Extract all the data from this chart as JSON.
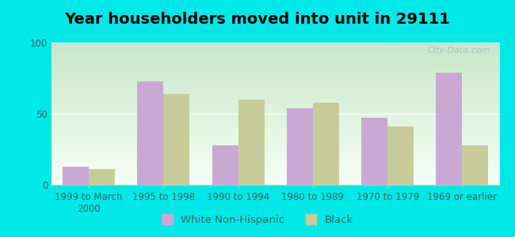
{
  "title": "Year householders moved into unit in 29111",
  "categories": [
    "1999 to March\n2000",
    "1995 to 1998",
    "1990 to 1994",
    "1980 to 1989",
    "1970 to 1979",
    "1969 or earlier"
  ],
  "white_values": [
    13,
    73,
    28,
    54,
    47,
    79
  ],
  "black_values": [
    11,
    64,
    60,
    58,
    41,
    28
  ],
  "white_color": "#c9a8d4",
  "black_color": "#c8cc9a",
  "background_outer": "#00e8e8",
  "ylim": [
    0,
    100
  ],
  "yticks": [
    0,
    50,
    100
  ],
  "bar_width": 0.35,
  "legend_labels": [
    "White Non-Hispanic",
    "Black"
  ],
  "title_fontsize": 14,
  "tick_fontsize": 8.5,
  "legend_fontsize": 9.5,
  "watermark": "City-Data.com"
}
